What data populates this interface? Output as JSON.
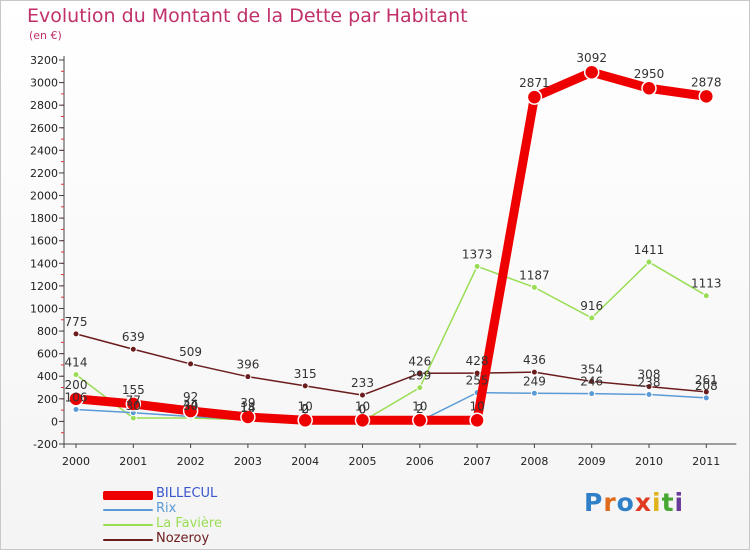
{
  "header": {
    "title": "Evolution du Montant de la Dette par Habitant",
    "unit": "(en €)"
  },
  "logo": {
    "text": "Proxiti",
    "letter_colors": [
      "#2f80c8",
      "#e06b1c",
      "#2f80c8",
      "#e03a20",
      "#e0b21c",
      "#46a832",
      "#6a3a9a"
    ]
  },
  "chart_data": {
    "type": "line",
    "title": "Evolution du Montant de la Dette par Habitant",
    "ylabel": "(en €)",
    "xlabel": "",
    "x": [
      "2000",
      "2001",
      "2002",
      "2003",
      "2004",
      "2005",
      "2006",
      "2007",
      "2008",
      "2009",
      "2010",
      "2011"
    ],
    "ylim": [
      -200,
      3200
    ],
    "yticks": [
      -200,
      0,
      200,
      400,
      600,
      800,
      1000,
      1200,
      1400,
      1600,
      1800,
      2000,
      2200,
      2400,
      2600,
      2800,
      3000,
      3200
    ],
    "grid": false,
    "legend_position": "bottom-left",
    "series": [
      {
        "name": "BILLECUL",
        "color": "#ee0000",
        "values": [
          200,
          155,
          92,
          39,
          10,
          10,
          10,
          10,
          2871,
          3092,
          2950,
          2878
        ]
      },
      {
        "name": "Rix",
        "color": "#5b9bd5",
        "values": [
          106,
          77,
          44,
          18,
          2,
          0,
          2,
          255,
          249,
          246,
          238,
          208
        ]
      },
      {
        "name": "La Favière",
        "color": "#99dd55",
        "values": [
          414,
          30,
          30,
          14,
          0,
          0,
          299,
          1373,
          1187,
          916,
          1411,
          1113
        ]
      },
      {
        "name": "Nozeroy",
        "color": "#6b1c1c",
        "values": [
          775,
          639,
          509,
          396,
          315,
          233,
          426,
          428,
          436,
          354,
          308,
          261
        ]
      }
    ]
  }
}
